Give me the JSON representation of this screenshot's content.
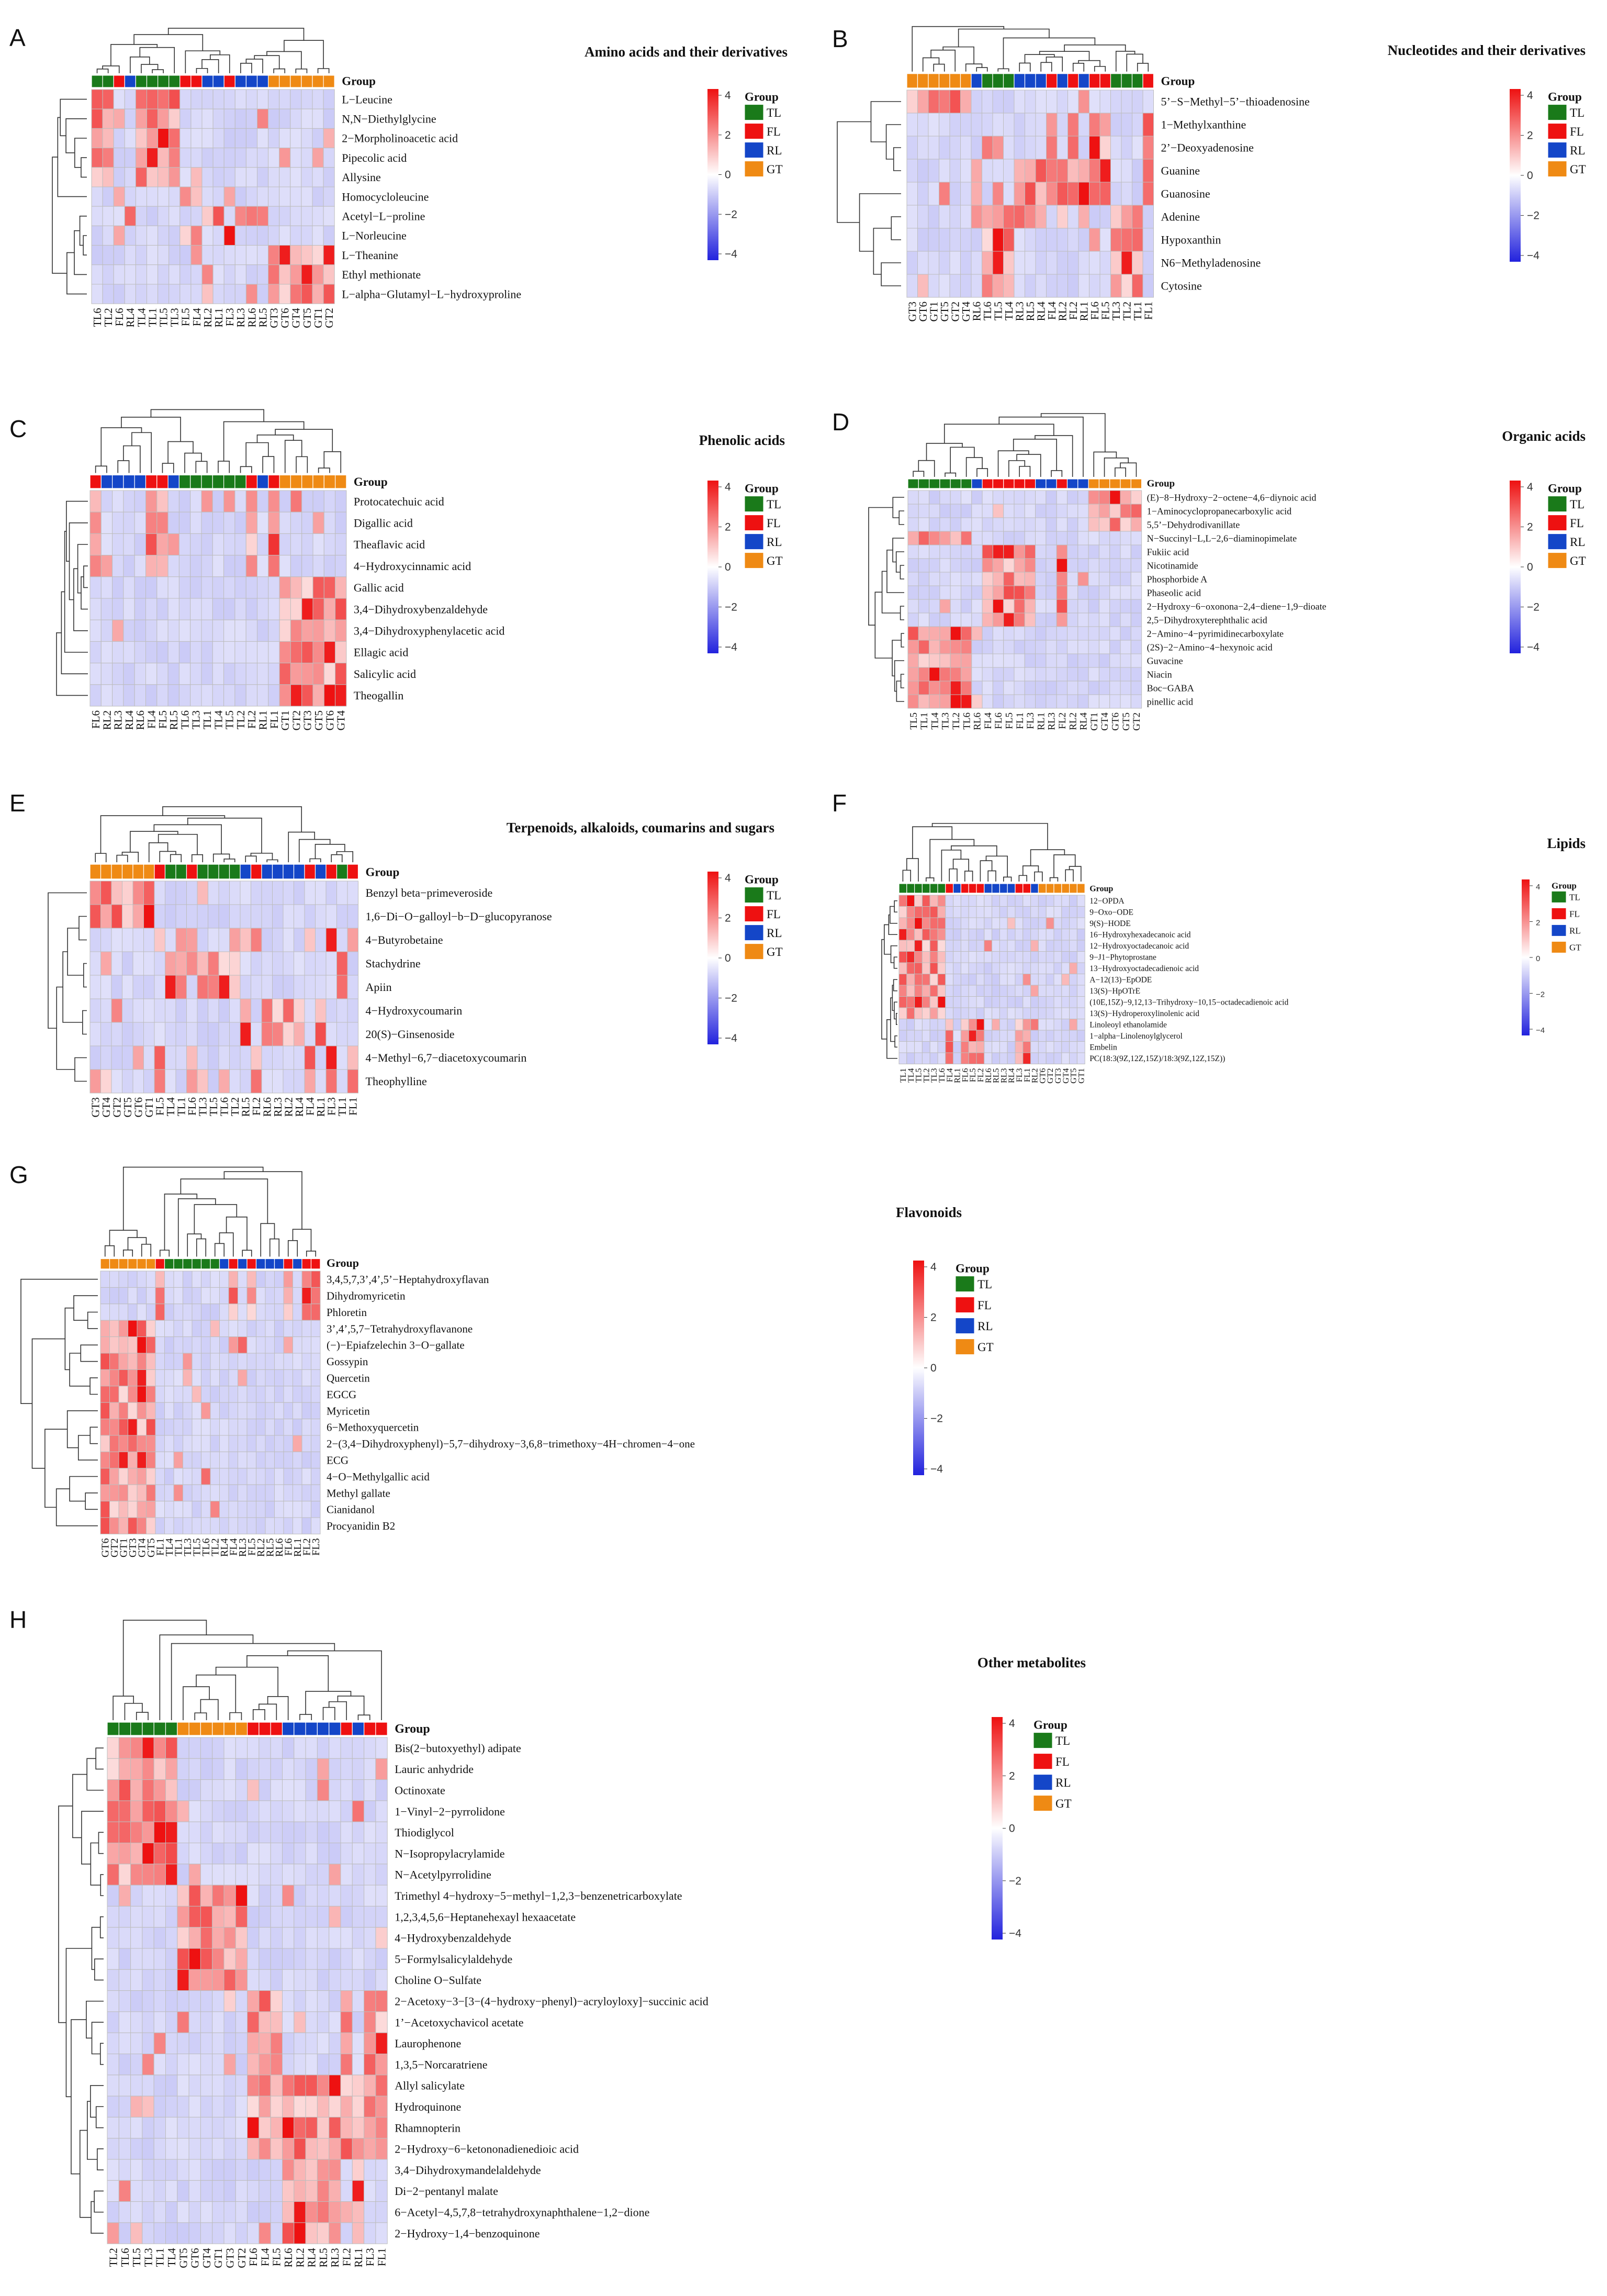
{
  "groups": {
    "title": "Group",
    "items": [
      {
        "name": "TL",
        "color": "#1a7a1a"
      },
      {
        "name": "FL",
        "color": "#ee1111"
      },
      {
        "name": "RL",
        "color": "#1446c8"
      },
      {
        "name": "GT",
        "color": "#ef8a14"
      }
    ]
  },
  "colors": {
    "low": "#2222dd",
    "mid": "#ffffff",
    "high": "#ee1111",
    "grid": "#bdbdbd"
  },
  "scale_ticks": [
    "4",
    "2",
    "0",
    "−2",
    "−4"
  ],
  "chart_data": [
    {
      "type": "heatmap",
      "panel": "A",
      "title": "Amino acids and their derivatives",
      "samples": [
        "TL6",
        "TL2",
        "FL6",
        "RL4",
        "TL4",
        "TL1",
        "TL5",
        "TL3",
        "FL5",
        "FL4",
        "RL2",
        "RL1",
        "FL3",
        "RL3",
        "RL6",
        "RL5",
        "GT3",
        "GT6",
        "GT4",
        "GT5",
        "GT1",
        "GT2"
      ],
      "rows": [
        "L−Leucine",
        "N,N−Diethylglycine",
        "2−Morpholinoacetic acid",
        "Pipecolic acid",
        "Allysine",
        "Homocycloleucine",
        "Acetyl−L−proline",
        "L−Norleucine",
        "L−Theanine",
        "Ethyl methionate",
        "L−alpha−Glutamyl−L−hydroxyproline"
      ],
      "scale": [
        -4,
        4
      ]
    },
    {
      "type": "heatmap",
      "panel": "B",
      "title": "Nucleotides and their derivatives",
      "samples": [
        "GT3",
        "GT6",
        "GT1",
        "GT5",
        "GT2",
        "GT4",
        "RL6",
        "TL6",
        "TL5",
        "TL4",
        "RL3",
        "RL5",
        "RL4",
        "FL4",
        "RL2",
        "FL2",
        "RL1",
        "FL6",
        "FL5",
        "TL3",
        "TL2",
        "TL1",
        "FL1"
      ],
      "rows": [
        "5’−S−Methyl−5’−thioadenosine",
        "1−Methylxanthine",
        "2’−Deoxyadenosine",
        "Guanine",
        "Guanosine",
        "Adenine",
        "Hypoxanthin",
        "N6−Methyladenosine",
        "Cytosine"
      ],
      "scale": [
        -4,
        4
      ]
    },
    {
      "type": "heatmap",
      "panel": "C",
      "title": "Phenolic acids",
      "samples": [
        "FL6",
        "RL2",
        "RL3",
        "RL4",
        "RL6",
        "FL4",
        "FL5",
        "RL5",
        "TL6",
        "TL3",
        "TL1",
        "TL4",
        "TL5",
        "TL2",
        "FL2",
        "RL1",
        "FL1",
        "GT1",
        "GT2",
        "GT3",
        "GT5",
        "GT6",
        "GT4"
      ],
      "rows": [
        "Protocatechuic acid",
        "Digallic acid",
        "Theaflavic acid",
        "4−Hydroxycinnamic acid",
        "Gallic acid",
        "3,4−Dihydroxybenzaldehyde",
        "3,4−Dihydroxyphenylacetic acid",
        "Ellagic acid",
        "Salicylic acid",
        "Theogallin"
      ],
      "scale": [
        -4,
        4
      ]
    },
    {
      "type": "heatmap",
      "panel": "D",
      "title": "Organic acids",
      "samples": [
        "TL5",
        "TL1",
        "TL4",
        "TL3",
        "TL2",
        "TL6",
        "RL6",
        "FL4",
        "FL6",
        "FL5",
        "FL1",
        "FL3",
        "RL1",
        "RL3",
        "FL2",
        "RL2",
        "RL4",
        "GT1",
        "GT4",
        "GT6",
        "GT5",
        "GT2"
      ],
      "rows": [
        "(E)−8−Hydroxy−2−octene−4,6−diynoic acid",
        "1−Aminocyclopropanecarboxylic acid",
        "5,5’−Dehydrodivanillate",
        "N−Succinyl−L,L−2,6−diaminopimelate",
        "Fukiic acid",
        "Nicotinamide",
        "Phosphorbide A",
        "Phaseolic acid",
        "2−Hydroxy−6−oxonona−2,4−diene−1,9−dioate",
        "2,5−Dihydroxyterephthalic acid",
        "2−Amino−4−pyrimidinecarboxylate",
        "(2S)−2−Amino−4−hexynoic acid",
        "Guvacine",
        "Niacin",
        "Boc−GABA",
        "pinellic acid"
      ],
      "scale": [
        -4,
        4
      ]
    },
    {
      "type": "heatmap",
      "panel": "E",
      "title": "Terpenoids, alkaloids, coumarins and sugars",
      "samples": [
        "GT3",
        "GT4",
        "GT2",
        "GT5",
        "GT6",
        "GT1",
        "FL5",
        "TL4",
        "TL1",
        "FL6",
        "TL3",
        "TL5",
        "TL6",
        "TL2",
        "RL5",
        "FL2",
        "RL6",
        "RL3",
        "RL2",
        "RL4",
        "FL4",
        "RL1",
        "FL3",
        "TL1",
        "FL1"
      ],
      "rows": [
        "Benzyl beta−primeveroside",
        "1,6−Di−O−galloyl−b−D−glucopyranose",
        "4−Butyrobetaine",
        "Stachydrine",
        "Apiin",
        "4−Hydroxycoumarin",
        "20(S)−Ginsenoside",
        "4−Methyl−6,7−diacetoxycoumarin",
        "Theophylline"
      ],
      "scale": [
        -4,
        4
      ]
    },
    {
      "type": "heatmap",
      "panel": "F",
      "title": "Lipids",
      "samples": [
        "TL1",
        "TL4",
        "TL5",
        "TL2",
        "TL3",
        "TL6",
        "FL4",
        "RL1",
        "FL6",
        "FL5",
        "FL2",
        "RL6",
        "RL5",
        "RL3",
        "RL4",
        "FL3",
        "FL1",
        "RL2",
        "GT6",
        "GT2",
        "GT3",
        "GT4",
        "GT5",
        "GT1"
      ],
      "rows": [
        "12−OPDA",
        "9−Oxo−ODE",
        "9(S)−HODE",
        "16−Hydroxyhexadecanoic acid",
        "12−Hydroxyoctadecanoic acid",
        "9−J1−Phytoprostane",
        "13−Hydroxyoctadecadienoic acid",
        "A−12(13)−EpODE",
        "13(S)−HpOTrE",
        "(10E,15Z)−9,12,13−Trihydroxy−10,15−octadecadienoic acid",
        "13(S)−Hydroperoxylinolenic acid",
        "Linoleoyl ethanolamide",
        "1−alpha−Linolenoylglycerol",
        "Embelin",
        "PC(18:3(9Z,12Z,15Z)/18:3(9Z,12Z,15Z))"
      ],
      "scale": [
        -4,
        4
      ]
    },
    {
      "type": "heatmap",
      "panel": "G",
      "title": "Flavonoids",
      "samples": [
        "GT6",
        "GT2",
        "GT1",
        "GT3",
        "GT4",
        "GT5",
        "FL1",
        "TL4",
        "TL1",
        "TL3",
        "TL5",
        "TL6",
        "TL2",
        "RL4",
        "FL4",
        "RL3",
        "FL5",
        "RL2",
        "RL5",
        "RL6",
        "FL6",
        "RL1",
        "FL2",
        "FL3"
      ],
      "rows": [
        "3,4,5,7,3’,4’,5’−Heptahydroxyflavan",
        "Dihydromyricetin",
        "Phloretin",
        "3’,4’,5,7−Tetrahydroxyflavanone",
        "(−)−Epiafzelechin 3−O−gallate",
        "Gossypin",
        "Quercetin",
        "EGCG",
        "Myricetin",
        "6−Methoxyquercetin",
        "2−(3,4−Dihydroxyphenyl)−5,7−dihydroxy−3,6,8−trimethoxy−4H−chromen−4−one",
        "ECG",
        "4−O−Methylgallic acid",
        "Methyl gallate",
        "Cianidanol",
        "Procyanidin B2"
      ],
      "scale": [
        -4,
        4
      ]
    },
    {
      "type": "heatmap",
      "panel": "H",
      "title": "Other metabolites",
      "samples": [
        "TL2",
        "TL6",
        "TL5",
        "TL3",
        "TL1",
        "TL4",
        "GT5",
        "GT6",
        "GT4",
        "GT1",
        "GT3",
        "GT2",
        "FL6",
        "FL4",
        "FL5",
        "RL6",
        "RL2",
        "RL4",
        "RL5",
        "RL3",
        "FL2",
        "RL1",
        "FL3",
        "FL1"
      ],
      "rows": [
        "Bis(2−butoxyethyl) adipate",
        "Lauric anhydride",
        "Octinoxate",
        "1−Vinyl−2−pyrrolidone",
        "Thiodiglycol",
        "N−Isopropylacrylamide",
        "N−Acetylpyrrolidine",
        "Trimethyl 4−hydroxy−5−methyl−1,2,3−benzenetricarboxylate",
        "1,2,3,4,5,6−Heptanehexayl hexaacetate",
        "4−Hydroxybenzaldehyde",
        "5−Formylsalicylaldehyde",
        "Choline O−Sulfate",
        "2−Acetoxy−3−[3−(4−hydroxy−phenyl)−acryloyloxy]−succinic acid",
        "1’−Acetoxychavicol acetate",
        "Laurophenone",
        "1,3,5−Norcaratriene",
        "Allyl salicylate",
        "Hydroquinone",
        "Rhamnopterin",
        "2−Hydroxy−6−ketononadienedioic acid",
        "3,4−Dihydroxymandelaldehyde",
        "Di−2−pentanyl malate",
        "6−Acetyl−4,5,7,8−tetrahydroxynaphthalene−1,2−dione",
        "2−Hydroxy−1,4−benzoquinone"
      ],
      "scale": [
        -4,
        4
      ]
    }
  ]
}
